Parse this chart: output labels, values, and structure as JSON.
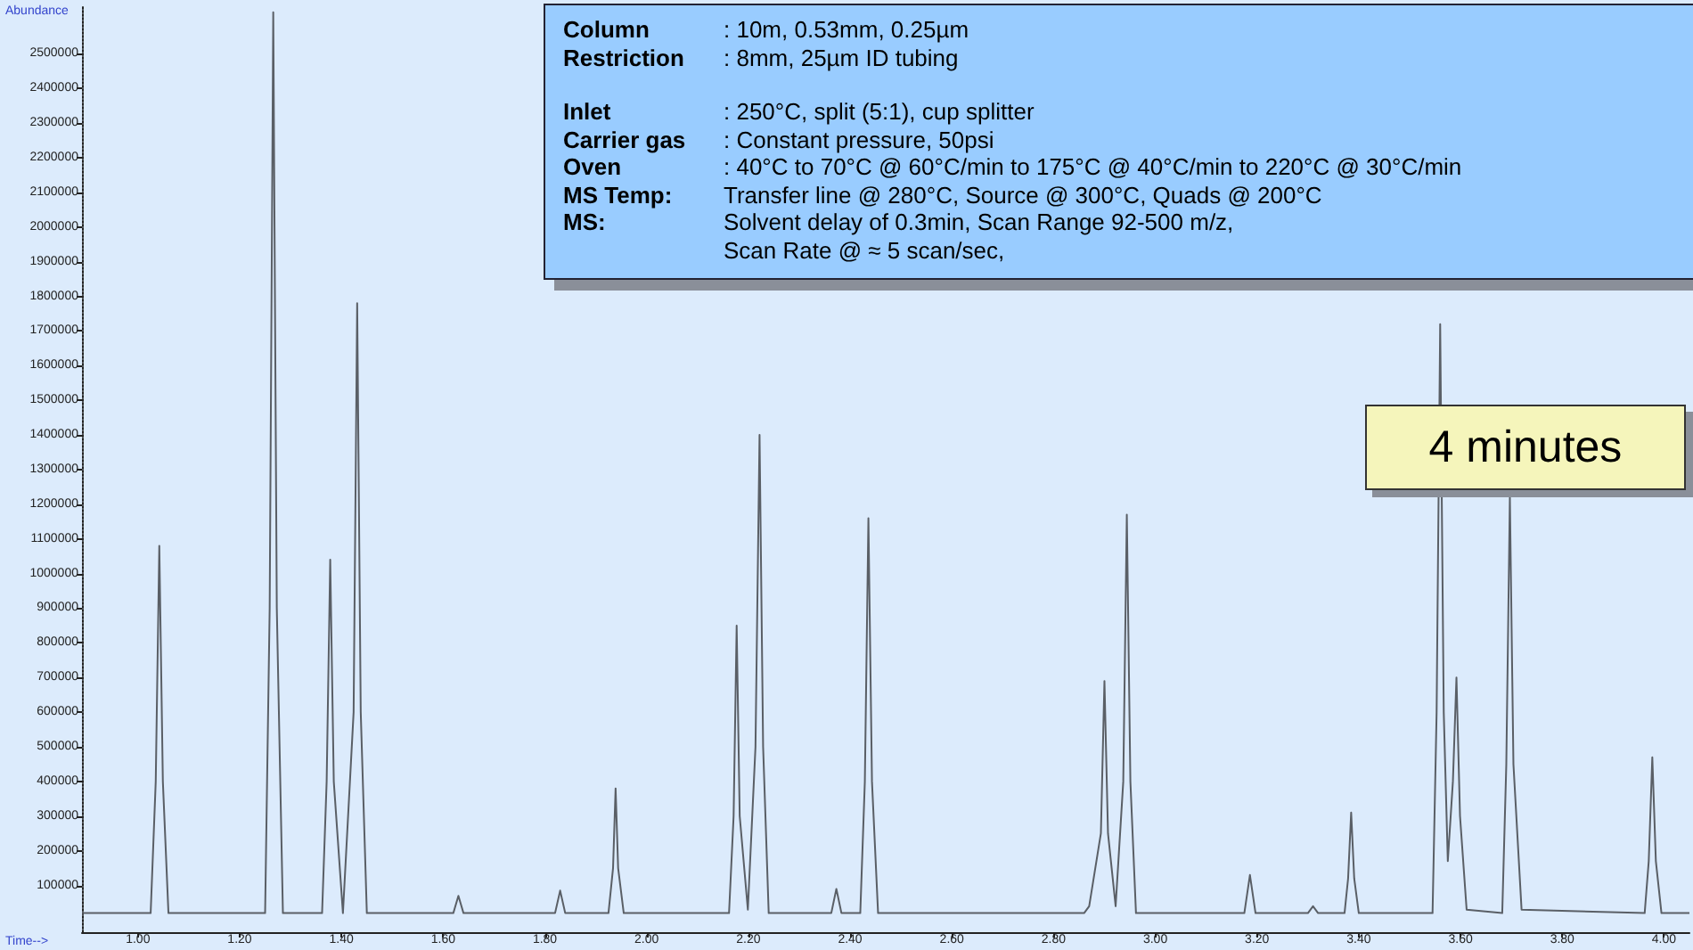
{
  "chart_data": {
    "type": "line",
    "xlabel": "Time-->",
    "ylabel": "Abundance",
    "x": [
      0.89,
      1.025,
      1.035,
      1.042,
      1.049,
      1.06,
      1.25,
      1.259,
      1.266,
      1.273,
      1.285,
      1.362,
      1.371,
      1.378,
      1.385,
      1.403,
      1.424,
      1.431,
      1.438,
      1.45,
      1.62,
      1.63,
      1.64,
      1.82,
      1.83,
      1.84,
      1.925,
      1.934,
      1.939,
      1.944,
      1.955,
      2.162,
      2.171,
      2.177,
      2.183,
      2.199,
      2.214,
      2.222,
      2.229,
      2.24,
      2.363,
      2.373,
      2.383,
      2.42,
      2.429,
      2.436,
      2.443,
      2.455,
      2.86,
      2.87,
      2.893,
      2.9,
      2.907,
      2.922,
      2.937,
      2.944,
      2.951,
      2.962,
      3.175,
      3.186,
      3.197,
      3.3,
      3.31,
      3.32,
      3.372,
      3.379,
      3.385,
      3.391,
      3.4,
      3.545,
      3.553,
      3.56,
      3.567,
      3.575,
      3.585,
      3.592,
      3.599,
      3.612,
      3.682,
      3.69,
      3.697,
      3.704,
      3.72,
      3.962,
      3.97,
      3.977,
      3.984,
      3.995,
      4.05
    ],
    "series": [
      {
        "color": "#5a5f66",
        "values": [
          20000,
          20000,
          400000,
          1080000,
          400000,
          20000,
          20000,
          900000,
          2620000,
          900000,
          20000,
          20000,
          400000,
          1040000,
          400000,
          20000,
          600000,
          1780000,
          600000,
          20000,
          20000,
          70000,
          20000,
          20000,
          85000,
          20000,
          20000,
          150000,
          380000,
          150000,
          20000,
          20000,
          300000,
          850000,
          300000,
          30000,
          500000,
          1400000,
          500000,
          20000,
          20000,
          90000,
          20000,
          20000,
          400000,
          1160000,
          400000,
          20000,
          20000,
          40000,
          250000,
          690000,
          250000,
          40000,
          400000,
          1170000,
          400000,
          20000,
          20000,
          130000,
          20000,
          20000,
          40000,
          20000,
          20000,
          120000,
          310000,
          120000,
          20000,
          20000,
          600000,
          1720000,
          600000,
          170000,
          400000,
          700000,
          300000,
          30000,
          20000,
          450000,
          1220000,
          450000,
          30000,
          20000,
          170000,
          470000,
          170000,
          20000,
          20000
        ]
      }
    ],
    "xlim": [
      0.89,
      4.05
    ],
    "xticks": [
      {
        "value": 1.0,
        "label": "1.00"
      },
      {
        "value": 1.2,
        "label": "1.20"
      },
      {
        "value": 1.4,
        "label": "1.40"
      },
      {
        "value": 1.6,
        "label": "1.60"
      },
      {
        "value": 1.8,
        "label": "1.80"
      },
      {
        "value": 2.0,
        "label": "2.00"
      },
      {
        "value": 2.2,
        "label": "2.20"
      },
      {
        "value": 2.4,
        "label": "2.40"
      },
      {
        "value": 2.6,
        "label": "2.60"
      },
      {
        "value": 2.8,
        "label": "2.80"
      },
      {
        "value": 3.0,
        "label": "3.00"
      },
      {
        "value": 3.2,
        "label": "3.20"
      },
      {
        "value": 3.4,
        "label": "3.40"
      },
      {
        "value": 3.6,
        "label": "3.60"
      },
      {
        "value": 3.8,
        "label": "3.80"
      },
      {
        "value": 4.0,
        "label": "4.00"
      }
    ],
    "ylim": [
      -35000,
      2640000
    ],
    "yticks": [
      100000,
      200000,
      300000,
      400000,
      500000,
      600000,
      700000,
      800000,
      900000,
      1000000,
      1100000,
      1200000,
      1300000,
      1400000,
      1500000,
      1600000,
      1700000,
      1800000,
      1900000,
      2000000,
      2100000,
      2200000,
      2300000,
      2400000,
      2500000
    ],
    "grid": false,
    "marker": "none",
    "line_style": "solid",
    "annotations": [
      "Column\t: 10m, 0.53mm, 0.25µm",
      "Restriction\t: 8mm, 25µm ID tubing",
      "Inlet\t: 250°C, split (5:1), cup splitter",
      "Carrier gas\t: Constant pressure, 50psi",
      "Oven\t: 40°C to 70°C @ 60°C/min to 175°C @ 40°C/min to 220°C @ 30°C/min",
      "MS Temp:\tTransfer line @ 280°C, Source @ 300°C, Quads @ 200°C",
      "MS:\tSolvent delay of 0.3min, Scan Range 92-500 m/z,",
      "\tScan Rate @ ≈ 5 scan/sec,",
      "4 minutes"
    ]
  }
}
